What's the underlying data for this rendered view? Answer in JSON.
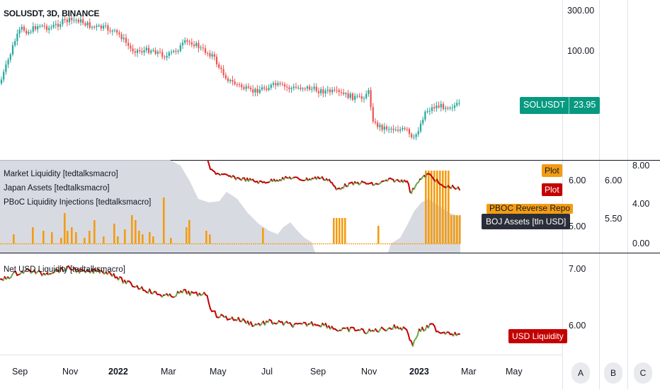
{
  "chart": {
    "ticker_title": "SOLUSDT, 3D, BINANCE"
  },
  "price_pane": {
    "y_axis_labels": [
      "300.00",
      "100.00"
    ],
    "last_price_symbol": "SOLUSDT",
    "last_price_value": "23.95"
  },
  "indicator_pane": {
    "legend": [
      "Market Liquidity [tedtalksmacro]",
      "Japan Assets [tedtalksmacro]",
      "PBoC Liquidity Injections [tedtalksmacro]"
    ],
    "tags": {
      "plot1": "Plot",
      "plot2": "Plot",
      "pboc": "PBOC Reverse Repo",
      "boj": "BOJ Assets [tln USD]"
    },
    "axis1_labels": [
      "6.00",
      "5.00"
    ],
    "axis2_labels": [
      "6.00",
      "5.50"
    ],
    "axis3_labels": [
      "8.00",
      "4.00",
      "0.00"
    ]
  },
  "usd_pane": {
    "legend": "Net USD Liquidity [tedtalksmacro]",
    "y_axis_labels": [
      "7.00",
      "6.00"
    ],
    "tag": "USD Liquidity"
  },
  "time_axis": {
    "labels": [
      "Sep",
      "Nov",
      "2022",
      "Mar",
      "May",
      "Jul",
      "Sep",
      "Nov",
      "2023",
      "Mar",
      "May"
    ],
    "scale_buttons": [
      "A",
      "B",
      "C"
    ]
  },
  "colors": {
    "up": "#26a69a",
    "down": "#ef5350",
    "price_tag": "#089981",
    "liquidity_red": "#c40000",
    "liquidity_green": "#6aa84f",
    "boj_fill": "#d1d4dc",
    "pboc_bar": "#f39c12",
    "boj_tag": "#2a2e39"
  }
}
